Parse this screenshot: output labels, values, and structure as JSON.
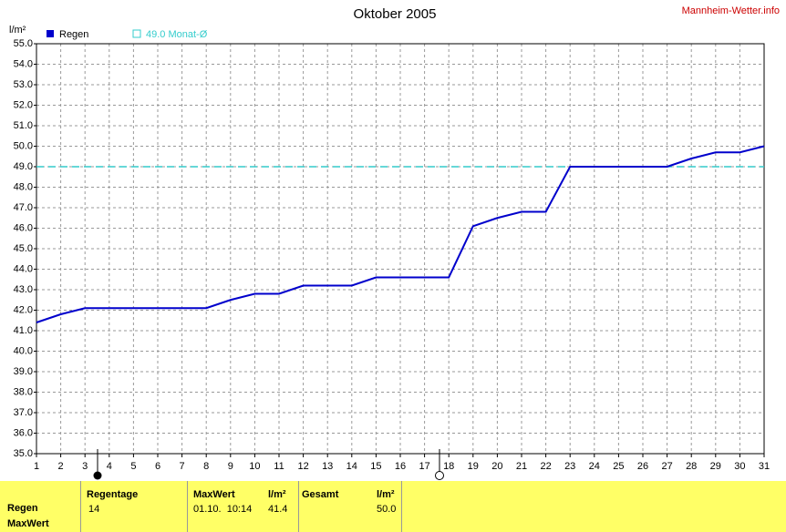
{
  "chart_data": {
    "type": "line",
    "title": "Oktober 2005",
    "source": "Mannheim-Wetter.info",
    "ylabel": "l/m²",
    "x": [
      1,
      2,
      3,
      4,
      5,
      6,
      7,
      8,
      9,
      10,
      11,
      12,
      13,
      14,
      15,
      16,
      17,
      18,
      19,
      20,
      21,
      22,
      23,
      24,
      25,
      26,
      27,
      28,
      29,
      30,
      31
    ],
    "series": [
      {
        "name": "Regen",
        "color": "#0000cc",
        "values": [
          41.4,
          41.8,
          42.1,
          42.1,
          42.1,
          42.1,
          42.1,
          42.1,
          42.5,
          42.8,
          42.8,
          43.2,
          43.2,
          43.2,
          43.6,
          43.6,
          43.6,
          43.6,
          46.1,
          46.5,
          46.8,
          46.8,
          49.0,
          49.0,
          49.0,
          49.0,
          49.0,
          49.4,
          49.7,
          49.7,
          50.0
        ]
      }
    ],
    "reference": {
      "value": 49.0,
      "label": "49.0 Monat-Ø",
      "color": "#33cccc"
    },
    "xlim": [
      1,
      31
    ],
    "xticks": [
      1,
      2,
      3,
      4,
      5,
      6,
      7,
      8,
      9,
      10,
      11,
      12,
      13,
      14,
      15,
      16,
      17,
      18,
      19,
      20,
      21,
      22,
      23,
      24,
      25,
      26,
      27,
      28,
      29,
      30,
      31
    ],
    "ylim": [
      35,
      55
    ],
    "yticks": [
      {
        "value": 35,
        "label": "35.0"
      },
      {
        "value": 36,
        "label": "36.0"
      },
      {
        "value": 37,
        "label": "37.0"
      },
      {
        "value": 38,
        "label": "38.0"
      },
      {
        "value": 39,
        "label": "39.0"
      },
      {
        "value": 40,
        "label": "40.0"
      },
      {
        "value": 41,
        "label": "41.0"
      },
      {
        "value": 42,
        "label": "42.0"
      },
      {
        "value": 43,
        "label": "43.0"
      },
      {
        "value": 44,
        "label": "44.0"
      },
      {
        "value": 45,
        "label": "45.0"
      },
      {
        "value": 46,
        "label": "46.0"
      },
      {
        "value": 47,
        "label": "47.0"
      },
      {
        "value": 48,
        "label": "48.0"
      },
      {
        "value": 49,
        "label": "49.0"
      },
      {
        "value": 50,
        "label": "50.0"
      },
      {
        "value": 51,
        "label": "51.0"
      },
      {
        "value": 52,
        "label": "52.0"
      },
      {
        "value": 53,
        "label": "53.0"
      },
      {
        "value": 54,
        "label": "54.0"
      },
      {
        "value": 55,
        "label": "55.0"
      }
    ],
    "grid": true
  },
  "summary": {
    "row_labels": [
      "Regen",
      "MaxWert"
    ],
    "columns": [
      {
        "header": [
          "Regentage"
        ],
        "cells": [
          "14"
        ]
      },
      {
        "header": [
          "MaxWert",
          "l/m²"
        ],
        "cells": [
          "01.10.  10:14",
          "41.4"
        ]
      },
      {
        "header": [
          "Gesamt",
          "l/m²"
        ],
        "cells": [
          "50.0"
        ]
      }
    ]
  }
}
